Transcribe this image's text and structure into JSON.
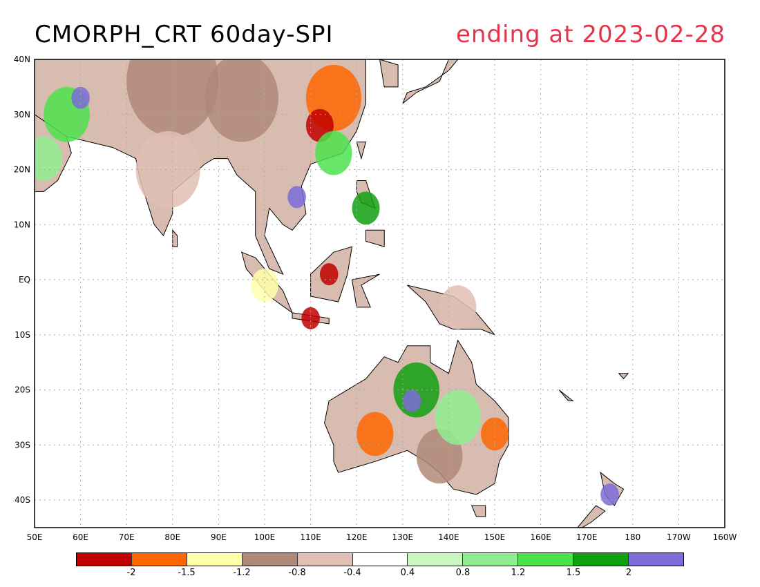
{
  "title": {
    "main": "CMORPH_CRT 60day-SPI",
    "subtitle": "ending at 2023-02-28"
  },
  "map": {
    "lon_range": [
      50,
      200
    ],
    "lat_range": [
      -45,
      40
    ],
    "lat_labels": [
      "40N",
      "30N",
      "20N",
      "10N",
      "EQ",
      "10S",
      "20S",
      "30S",
      "40S"
    ],
    "lon_labels": [
      "50E",
      "60E",
      "70E",
      "80E",
      "90E",
      "100E",
      "110E",
      "120E",
      "130E",
      "140E",
      "150E",
      "160E",
      "170E",
      "180",
      "170W",
      "160W"
    ],
    "grid": true,
    "colors": {
      "coast": "#000000",
      "grid": "#aaaaaa"
    }
  },
  "legend": {
    "colors": [
      "#c00000",
      "#ff6600",
      "#ffffaa",
      "#b08878",
      "#e0c0b4",
      "#ffffff",
      "#c8f8c0",
      "#90ee90",
      "#4ce24c",
      "#10a010",
      "#7b6cd8"
    ],
    "ticks": [
      "-2",
      "-1.5",
      "-1.2",
      "-0.8",
      "-0.4",
      "0.4",
      "0.8",
      "1.2",
      "1.5",
      "2"
    ]
  },
  "regions": [
    {
      "name": "central-asia-dry",
      "level": 3,
      "lon": 80,
      "lat": 36,
      "r": 10
    },
    {
      "name": "tibet-dry",
      "level": 3,
      "lon": 95,
      "lat": 33,
      "r": 8
    },
    {
      "name": "east-china-dry",
      "level": 1,
      "lon": 115,
      "lat": 33,
      "r": 6
    },
    {
      "name": "north-china-drier",
      "level": 0,
      "lon": 112,
      "lat": 28,
      "r": 3
    },
    {
      "name": "persia-wet",
      "level": 8,
      "lon": 57,
      "lat": 30,
      "r": 5
    },
    {
      "name": "persia-very-wet",
      "level": 10,
      "lon": 60,
      "lat": 33,
      "r": 2
    },
    {
      "name": "arabia-wet",
      "level": 7,
      "lon": 52,
      "lat": 22,
      "r": 4
    },
    {
      "name": "india-mixed",
      "level": 4,
      "lon": 79,
      "lat": 20,
      "r": 7
    },
    {
      "name": "indochina-wet",
      "level": 10,
      "lon": 107,
      "lat": 15,
      "r": 2
    },
    {
      "name": "south-china-wet",
      "level": 8,
      "lon": 115,
      "lat": 23,
      "r": 4
    },
    {
      "name": "philippines-wet",
      "level": 9,
      "lon": 122,
      "lat": 13,
      "r": 3
    },
    {
      "name": "sumatra-dry",
      "level": 2,
      "lon": 100,
      "lat": -1,
      "r": 3
    },
    {
      "name": "java-dry",
      "level": 0,
      "lon": 110,
      "lat": -7,
      "r": 2
    },
    {
      "name": "borneo-dry",
      "level": 0,
      "lon": 114,
      "lat": 1,
      "r": 2
    },
    {
      "name": "new-guinea-mixed",
      "level": 4,
      "lon": 142,
      "lat": -5,
      "r": 4
    },
    {
      "name": "australia-north-wet",
      "level": 9,
      "lon": 133,
      "lat": -20,
      "r": 5
    },
    {
      "name": "australia-nw-very-wet",
      "level": 10,
      "lon": 132,
      "lat": -22,
      "r": 2
    },
    {
      "name": "australia-sw-dry",
      "level": 1,
      "lon": 124,
      "lat": -28,
      "r": 4
    },
    {
      "name": "australia-south-dry",
      "level": 3,
      "lon": 138,
      "lat": -32,
      "r": 5
    },
    {
      "name": "australia-east-dry",
      "level": 1,
      "lon": 150,
      "lat": -28,
      "r": 3
    },
    {
      "name": "australia-inland-wet",
      "level": 7,
      "lon": 142,
      "lat": -25,
      "r": 5
    },
    {
      "name": "new-zealand-wet",
      "level": 10,
      "lon": 175,
      "lat": -39,
      "r": 2
    }
  ]
}
